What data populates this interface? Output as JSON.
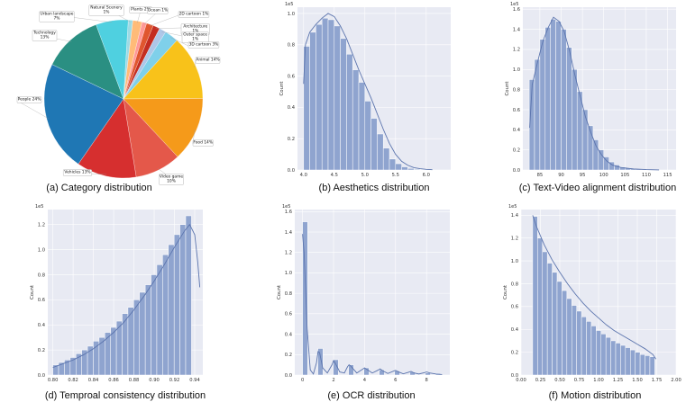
{
  "chart_data": [
    {
      "type": "pie",
      "caption": "(a) Category distribution",
      "slices": [
        {
          "label": "Natural Scenery 1%",
          "value": 1,
          "color": "#9edae5"
        },
        {
          "label": "Plants 2%",
          "value": 2,
          "color": "#ffbb78"
        },
        {
          "label": "Ocean 1%",
          "value": 1,
          "color": "#ff9896"
        },
        {
          "label": "2D cartoon 1%",
          "value": 1.5,
          "color": "#e0562f"
        },
        {
          "label": "Architecture 1%",
          "value": 1.5,
          "color": "#c42d21"
        },
        {
          "label": "Outer space 1%",
          "value": 1.5,
          "color": "#aec7e8"
        },
        {
          "label": "3D cartoon 3%",
          "value": 3,
          "color": "#7fd0ea"
        },
        {
          "label": "Animal 14%",
          "value": 14,
          "color": "#f8c21a"
        },
        {
          "label": "Food 14%",
          "value": 14,
          "color": "#f59a1a"
        },
        {
          "label": "Video game 10%",
          "value": 10,
          "color": "#e4584a"
        },
        {
          "label": "Vehicles 13%",
          "value": 13,
          "color": "#d62f2f"
        },
        {
          "label": "People 24%",
          "value": 24,
          "color": "#1f77b4"
        },
        {
          "label": "Technology 13%",
          "value": 13,
          "color": "#2a8f82"
        },
        {
          "label": "Urban landscape 7%",
          "value": 7,
          "color": "#4fd0e0"
        }
      ]
    },
    {
      "type": "bar",
      "caption": "(b) Aesthetics distribution",
      "xlabel": "",
      "ylabel": "Count",
      "sci_label": "1e5",
      "xlim": [
        3.9,
        6.4
      ],
      "ylim": [
        0,
        1.04
      ],
      "xticks": [
        "4.0",
        "4.5",
        "5.0",
        "5.5",
        "6.0"
      ],
      "yticks": [
        "0.0",
        "0.2",
        "0.4",
        "0.6",
        "0.8",
        "1.0"
      ],
      "bin_start": 4.0,
      "bin_width": 0.1,
      "values": [
        0.79,
        0.88,
        0.93,
        0.97,
        0.96,
        0.92,
        0.84,
        0.74,
        0.64,
        0.56,
        0.44,
        0.33,
        0.23,
        0.14,
        0.07,
        0.04,
        0.02,
        0.01,
        0.005,
        0.002
      ],
      "kde": [
        [
          4.0,
          0.55
        ],
        [
          4.03,
          0.8
        ],
        [
          4.1,
          0.88
        ],
        [
          4.2,
          0.93
        ],
        [
          4.3,
          0.97
        ],
        [
          4.4,
          1.0
        ],
        [
          4.5,
          0.98
        ],
        [
          4.6,
          0.92
        ],
        [
          4.7,
          0.84
        ],
        [
          4.8,
          0.74
        ],
        [
          4.9,
          0.64
        ],
        [
          5.0,
          0.55
        ],
        [
          5.1,
          0.46
        ],
        [
          5.2,
          0.36
        ],
        [
          5.3,
          0.26
        ],
        [
          5.4,
          0.17
        ],
        [
          5.5,
          0.1
        ],
        [
          5.6,
          0.055
        ],
        [
          5.7,
          0.03
        ],
        [
          5.8,
          0.015
        ],
        [
          5.9,
          0.008
        ],
        [
          6.0,
          0.004
        ],
        [
          6.1,
          0.002
        ]
      ]
    },
    {
      "type": "bar",
      "caption": "(c) Text-Video alignment distribution",
      "xlabel": "",
      "ylabel": "Count",
      "sci_label": "1e5",
      "xlim": [
        81,
        117
      ],
      "ylim": [
        0,
        1.62
      ],
      "xticks": [
        "85",
        "90",
        "95",
        "100",
        "105",
        "110",
        "115"
      ],
      "yticks": [
        "0.0",
        "0.2",
        "0.4",
        "0.6",
        "0.8",
        "1.0",
        "1.2",
        "1.4",
        "1.6"
      ],
      "bin_start": 82.5,
      "bin_width": 1.25,
      "values": [
        0.9,
        1.1,
        1.3,
        1.42,
        1.5,
        1.48,
        1.4,
        1.22,
        1.0,
        0.78,
        0.6,
        0.44,
        0.3,
        0.2,
        0.13,
        0.08,
        0.05,
        0.03,
        0.02,
        0.012,
        0.008,
        0.005,
        0.003
      ],
      "kde": [
        [
          82.6,
          0.42
        ],
        [
          83.2,
          0.85
        ],
        [
          84.5,
          1.08
        ],
        [
          85.7,
          1.28
        ],
        [
          87.0,
          1.42
        ],
        [
          88.2,
          1.52
        ],
        [
          89.5,
          1.48
        ],
        [
          90.7,
          1.38
        ],
        [
          92.0,
          1.18
        ],
        [
          93.2,
          0.95
        ],
        [
          94.5,
          0.73
        ],
        [
          95.7,
          0.53
        ],
        [
          97.0,
          0.37
        ],
        [
          98.2,
          0.24
        ],
        [
          99.5,
          0.15
        ],
        [
          100.7,
          0.09
        ],
        [
          102.0,
          0.05
        ],
        [
          104.0,
          0.025
        ],
        [
          107.0,
          0.01
        ],
        [
          110.0,
          0.004
        ],
        [
          113.0,
          0.001
        ]
      ]
    },
    {
      "type": "bar",
      "caption": "(d) Temproal consistency distribution",
      "xlabel": "",
      "ylabel": "Count",
      "sci_label": "1e5",
      "xlim": [
        0.795,
        0.948
      ],
      "ylim": [
        0,
        1.32
      ],
      "xticks": [
        "0.80",
        "0.82",
        "0.84",
        "0.86",
        "0.88",
        "0.90",
        "0.92",
        "0.94"
      ],
      "yticks": [
        "0.0",
        "0.2",
        "0.4",
        "0.6",
        "0.8",
        "1.0",
        "1.2"
      ],
      "bin_start": 0.8,
      "bin_width": 0.0057,
      "values": [
        0.08,
        0.1,
        0.12,
        0.14,
        0.17,
        0.2,
        0.23,
        0.27,
        0.3,
        0.34,
        0.38,
        0.43,
        0.49,
        0.54,
        0.6,
        0.66,
        0.72,
        0.8,
        0.88,
        0.96,
        1.04,
        1.12,
        1.2,
        1.27
      ],
      "kde": [
        [
          0.8,
          0.06
        ],
        [
          0.81,
          0.09
        ],
        [
          0.82,
          0.12
        ],
        [
          0.83,
          0.16
        ],
        [
          0.84,
          0.21
        ],
        [
          0.85,
          0.27
        ],
        [
          0.86,
          0.34
        ],
        [
          0.87,
          0.42
        ],
        [
          0.88,
          0.52
        ],
        [
          0.89,
          0.63
        ],
        [
          0.9,
          0.75
        ],
        [
          0.91,
          0.88
        ],
        [
          0.92,
          1.02
        ],
        [
          0.93,
          1.15
        ],
        [
          0.935,
          1.2
        ],
        [
          0.94,
          1.12
        ],
        [
          0.943,
          0.9
        ],
        [
          0.945,
          0.7
        ]
      ]
    },
    {
      "type": "bar",
      "caption": "(e) OCR distribution",
      "xlabel": "",
      "ylabel": "Count",
      "sci_label": "1e5",
      "xlim": [
        -0.5,
        9.5
      ],
      "ylim": [
        0,
        1.62
      ],
      "xticks": [
        "0",
        "2",
        "4",
        "6",
        "8"
      ],
      "yticks": [
        "0.0",
        "0.2",
        "0.4",
        "0.6",
        "0.8",
        "1.0",
        "1.2",
        "1.4",
        "1.6"
      ],
      "bin_start": 0.0,
      "bin_width": 0.33,
      "values": [
        1.5,
        0,
        0,
        0.26,
        0,
        0,
        0.15,
        0,
        0,
        0.1,
        0,
        0,
        0.07,
        0,
        0,
        0.05,
        0,
        0,
        0.04,
        0,
        0,
        0.03,
        0,
        0,
        0.02,
        0,
        0.015
      ],
      "kde": [
        [
          0.0,
          1.38
        ],
        [
          0.1,
          1.2
        ],
        [
          0.3,
          0.45
        ],
        [
          0.5,
          0.05
        ],
        [
          0.7,
          0.01
        ],
        [
          0.9,
          0.12
        ],
        [
          1.0,
          0.23
        ],
        [
          1.1,
          0.22
        ],
        [
          1.3,
          0.07
        ],
        [
          1.6,
          0.02
        ],
        [
          1.9,
          0.1
        ],
        [
          2.0,
          0.14
        ],
        [
          2.1,
          0.12
        ],
        [
          2.4,
          0.03
        ],
        [
          2.7,
          0.02
        ],
        [
          2.9,
          0.08
        ],
        [
          3.0,
          0.1
        ],
        [
          3.1,
          0.09
        ],
        [
          3.5,
          0.02
        ],
        [
          3.9,
          0.06
        ],
        [
          4.0,
          0.07
        ],
        [
          4.2,
          0.05
        ],
        [
          4.5,
          0.02
        ],
        [
          4.9,
          0.05
        ],
        [
          5.0,
          0.06
        ],
        [
          5.2,
          0.04
        ],
        [
          5.5,
          0.015
        ],
        [
          5.9,
          0.04
        ],
        [
          6.0,
          0.045
        ],
        [
          6.2,
          0.03
        ],
        [
          6.5,
          0.012
        ],
        [
          6.9,
          0.03
        ],
        [
          7.0,
          0.035
        ],
        [
          7.2,
          0.02
        ],
        [
          7.5,
          0.01
        ],
        [
          7.9,
          0.025
        ],
        [
          8.0,
          0.03
        ],
        [
          8.2,
          0.02
        ],
        [
          8.6,
          0.01
        ],
        [
          9.0,
          0.005
        ]
      ]
    },
    {
      "type": "bar",
      "caption": "(f) Motion distribution",
      "xlabel": "",
      "ylabel": "Count",
      "sci_label": "1e5",
      "xlim": [
        0.0,
        2.0
      ],
      "ylim": [
        0,
        1.45
      ],
      "xticks": [
        "0.00",
        "0.25",
        "0.50",
        "0.75",
        "1.00",
        "1.25",
        "1.50",
        "1.75",
        "2.00"
      ],
      "yticks": [
        "0.0",
        "0.2",
        "0.4",
        "0.6",
        "0.8",
        "1.0",
        "1.2",
        "1.4"
      ],
      "bin_start": 0.15,
      "bin_width": 0.063,
      "values": [
        1.39,
        1.2,
        1.08,
        0.98,
        0.9,
        0.82,
        0.74,
        0.67,
        0.61,
        0.56,
        0.51,
        0.47,
        0.43,
        0.39,
        0.36,
        0.33,
        0.3,
        0.28,
        0.26,
        0.24,
        0.22,
        0.2,
        0.18,
        0.17,
        0.16
      ],
      "kde": [
        [
          0.15,
          1.4
        ],
        [
          0.2,
          1.3
        ],
        [
          0.3,
          1.14
        ],
        [
          0.4,
          1.01
        ],
        [
          0.5,
          0.9
        ],
        [
          0.6,
          0.8
        ],
        [
          0.7,
          0.71
        ],
        [
          0.8,
          0.63
        ],
        [
          0.9,
          0.56
        ],
        [
          1.0,
          0.5
        ],
        [
          1.1,
          0.44
        ],
        [
          1.2,
          0.39
        ],
        [
          1.3,
          0.35
        ],
        [
          1.4,
          0.31
        ],
        [
          1.5,
          0.27
        ],
        [
          1.6,
          0.23
        ],
        [
          1.7,
          0.18
        ],
        [
          1.74,
          0.14
        ]
      ]
    }
  ]
}
